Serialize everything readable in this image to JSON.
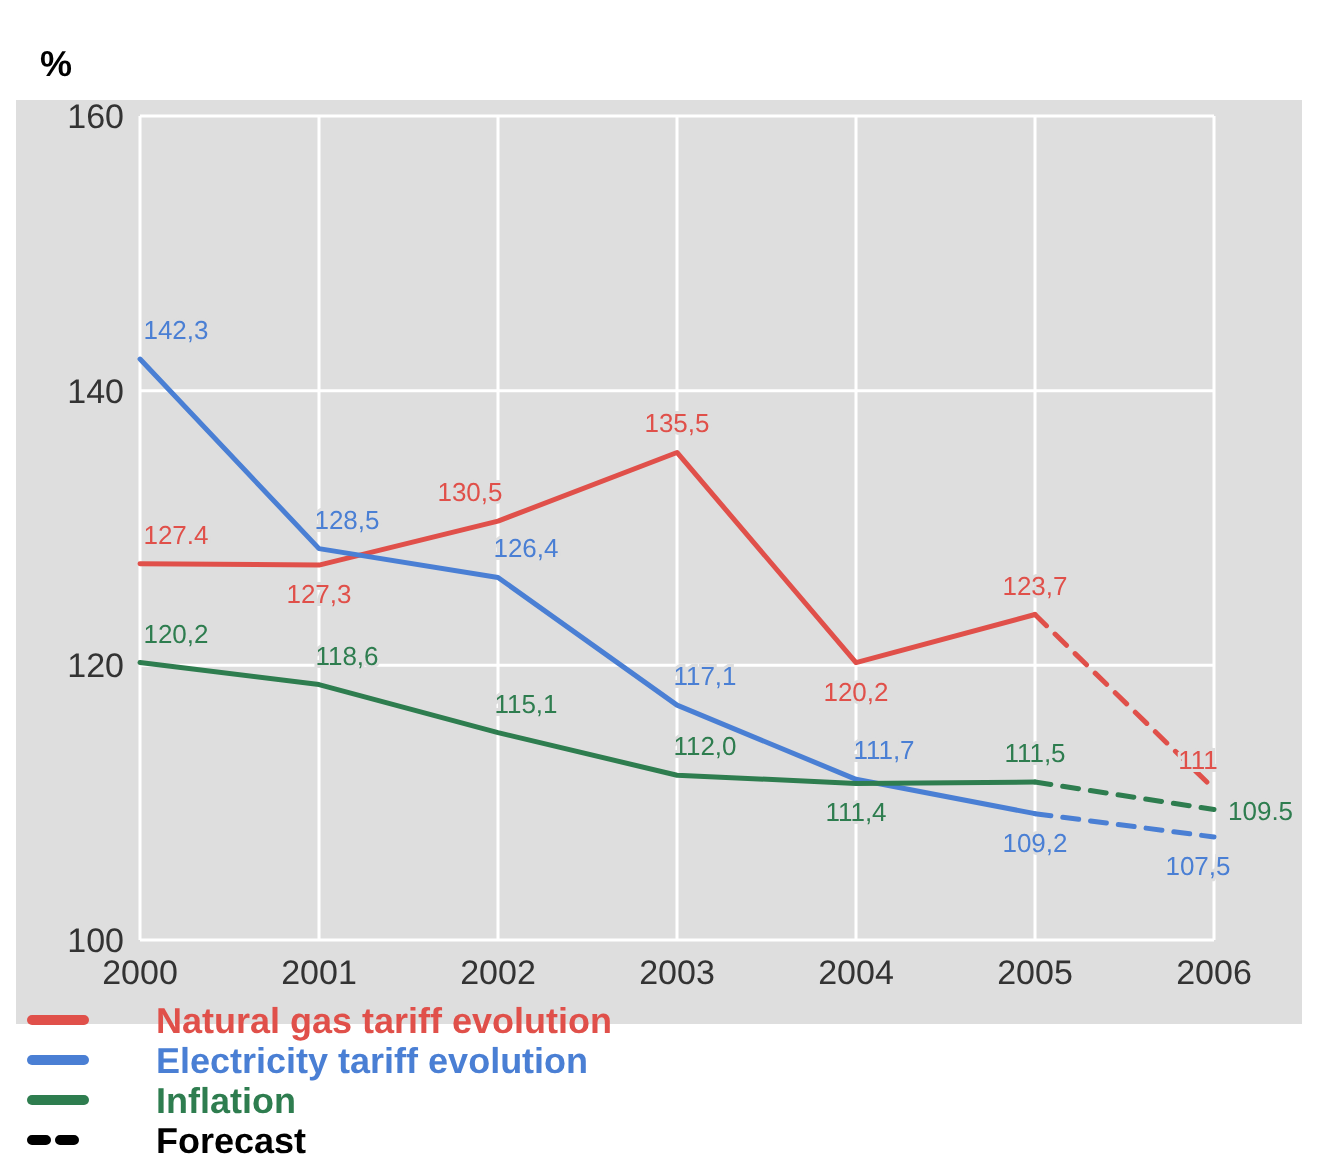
{
  "chart_data": {
    "type": "line",
    "ylabel": "%",
    "categories": [
      "2000",
      "2001",
      "2002",
      "2003",
      "2004",
      "2005",
      "2006"
    ],
    "ylim": [
      100,
      160
    ],
    "yticks": [
      100,
      120,
      140,
      160
    ],
    "grid": true,
    "legend": "bottom",
    "line_style": "solid",
    "series": [
      {
        "name": "Natural gas tariff evolution",
        "color": "#e0504a",
        "values": [
          127.4,
          127.3,
          130.5,
          135.5,
          120.2,
          123.7,
          null
        ],
        "value_labels": [
          "127.4",
          "127,3",
          "130,5",
          "135,5",
          "120,2",
          "123,7",
          null
        ]
      },
      {
        "name": "Electricity tariff evolution",
        "color": "#4a7fd4",
        "values": [
          142.3,
          128.5,
          126.4,
          117.1,
          111.7,
          109.2,
          null
        ],
        "value_labels": [
          "142,3",
          "128,5",
          "126,4",
          "117,1",
          "111,7",
          "109,2",
          null
        ]
      },
      {
        "name": "Inflation",
        "color": "#2e7d4f",
        "values": [
          120.2,
          118.6,
          115.1,
          112.0,
          111.4,
          111.5,
          null
        ],
        "value_labels": [
          "120,2",
          "118,6",
          "115,1",
          "112,0",
          "111,4",
          "111,5",
          null
        ]
      },
      {
        "color": "#e0504a",
        "line_style": "dashed",
        "values": [
          null,
          null,
          null,
          null,
          null,
          123.7,
          111
        ],
        "value_labels": [
          null,
          null,
          null,
          null,
          null,
          null,
          "111"
        ]
      },
      {
        "color": "#4a7fd4",
        "line_style": "dashed",
        "values": [
          null,
          null,
          null,
          null,
          null,
          109.2,
          107.5
        ],
        "value_labels": [
          null,
          null,
          null,
          null,
          null,
          null,
          "107,5"
        ]
      },
      {
        "color": "#2e7d4f",
        "line_style": "dashed",
        "values": [
          null,
          null,
          null,
          null,
          null,
          111.5,
          109.5
        ],
        "value_labels": [
          null,
          null,
          null,
          null,
          null,
          null,
          "109.5"
        ]
      },
      {
        "name": "Forecast",
        "color": "#000000",
        "line_style": "dashed",
        "values": [
          null,
          null,
          null,
          null,
          null,
          null,
          null
        ]
      }
    ]
  }
}
